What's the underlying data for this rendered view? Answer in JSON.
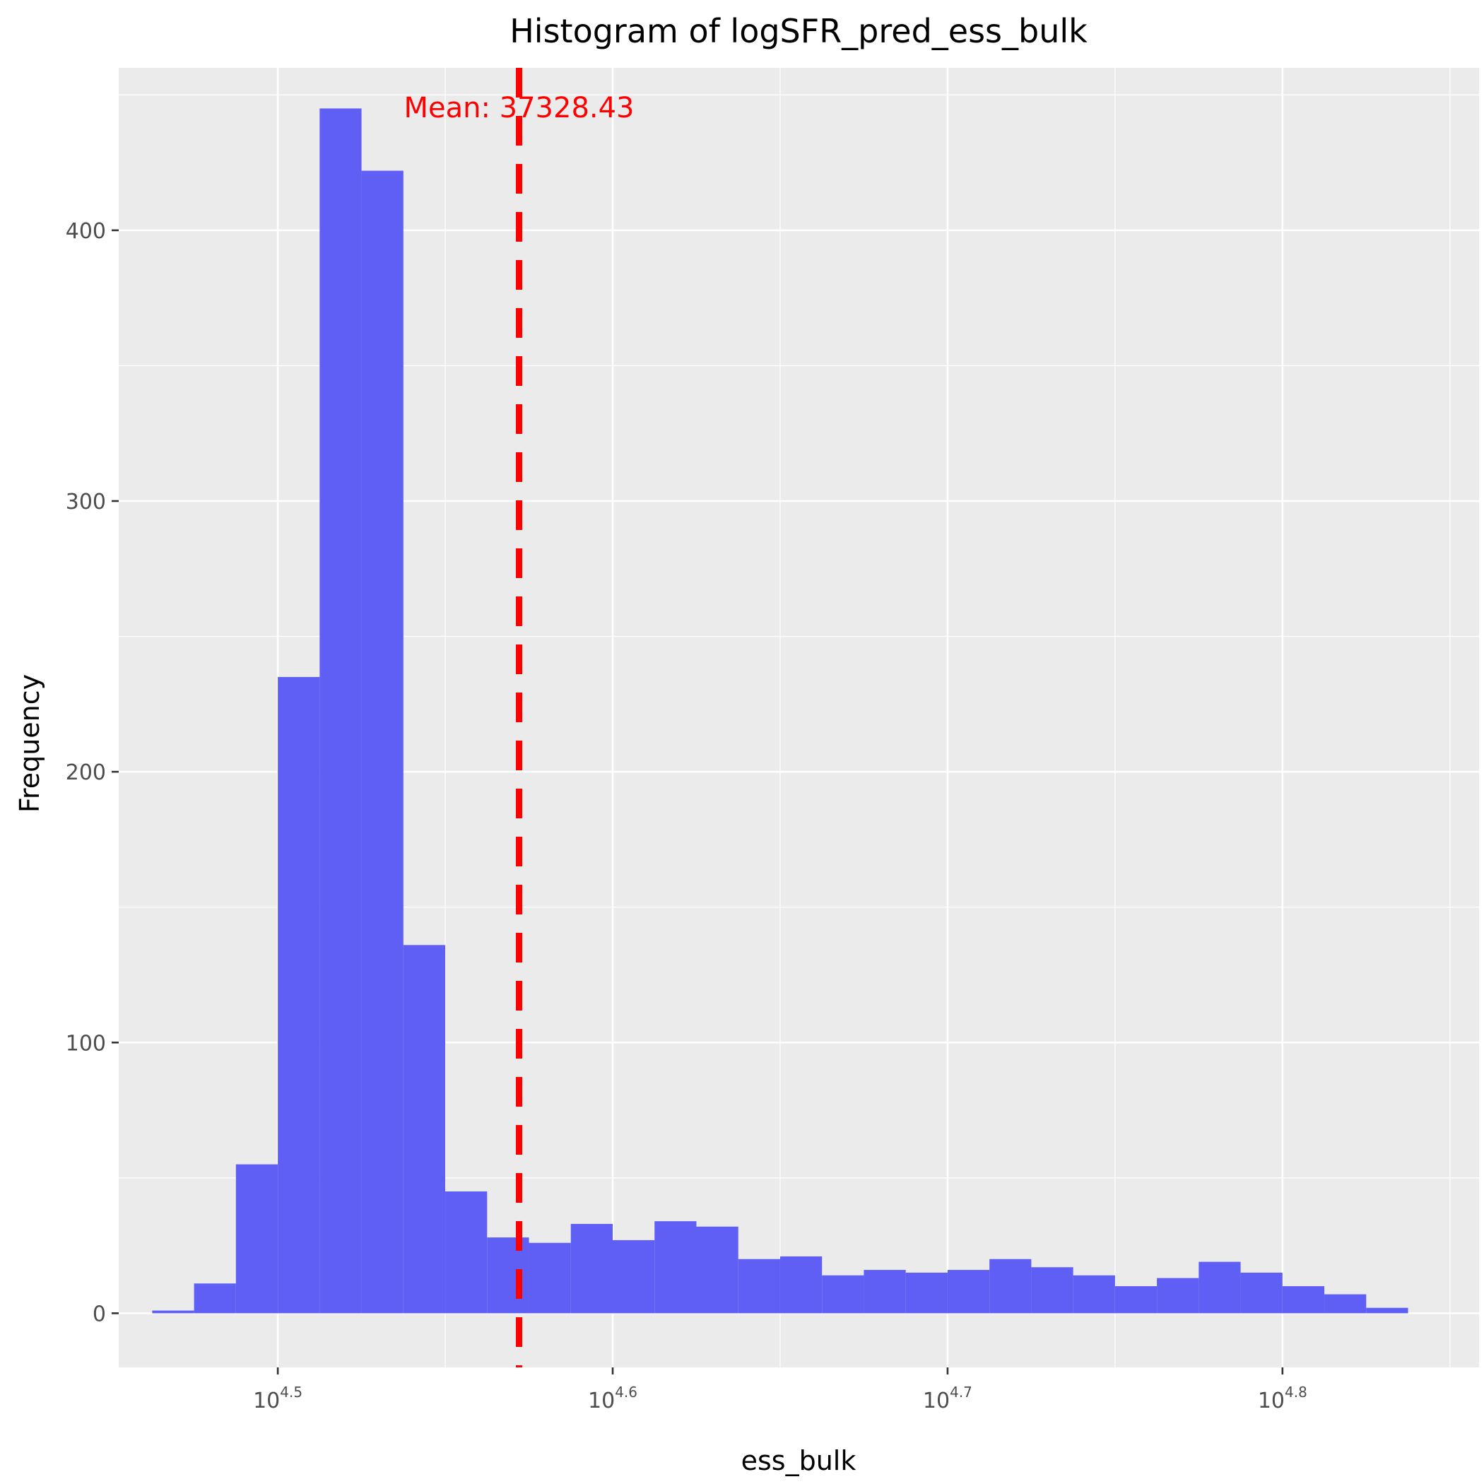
{
  "chart_data": {
    "type": "bar",
    "title": "Histogram of logSFR_pred_ess_bulk",
    "xlabel": "ess_bulk",
    "ylabel": "Frequency",
    "x_scale": "log10",
    "xlim_log10": [
      4.4525,
      4.8587
    ],
    "ylim": [
      -20,
      460
    ],
    "grid": true,
    "bar_color": "#5f5ff5",
    "x_ticks": [
      {
        "base": "10",
        "exp": "4.5",
        "log10": 4.5
      },
      {
        "base": "10",
        "exp": "4.6",
        "log10": 4.6
      },
      {
        "base": "10",
        "exp": "4.7",
        "log10": 4.7
      },
      {
        "base": "10",
        "exp": "4.8",
        "log10": 4.8
      }
    ],
    "y_ticks": [
      0,
      100,
      200,
      300,
      400
    ],
    "bins": {
      "start_log10": 4.4625,
      "width_log10": 0.0125,
      "counts": [
        1,
        11,
        55,
        235,
        445,
        422,
        136,
        45,
        28,
        26,
        33,
        27,
        34,
        32,
        20,
        21,
        14,
        16,
        15,
        16,
        20,
        17,
        14,
        10,
        13,
        19,
        15,
        10,
        7,
        2
      ]
    },
    "mean": {
      "value": 37328.43,
      "label": "Mean: 37328.43",
      "color": "#ff0000"
    }
  }
}
